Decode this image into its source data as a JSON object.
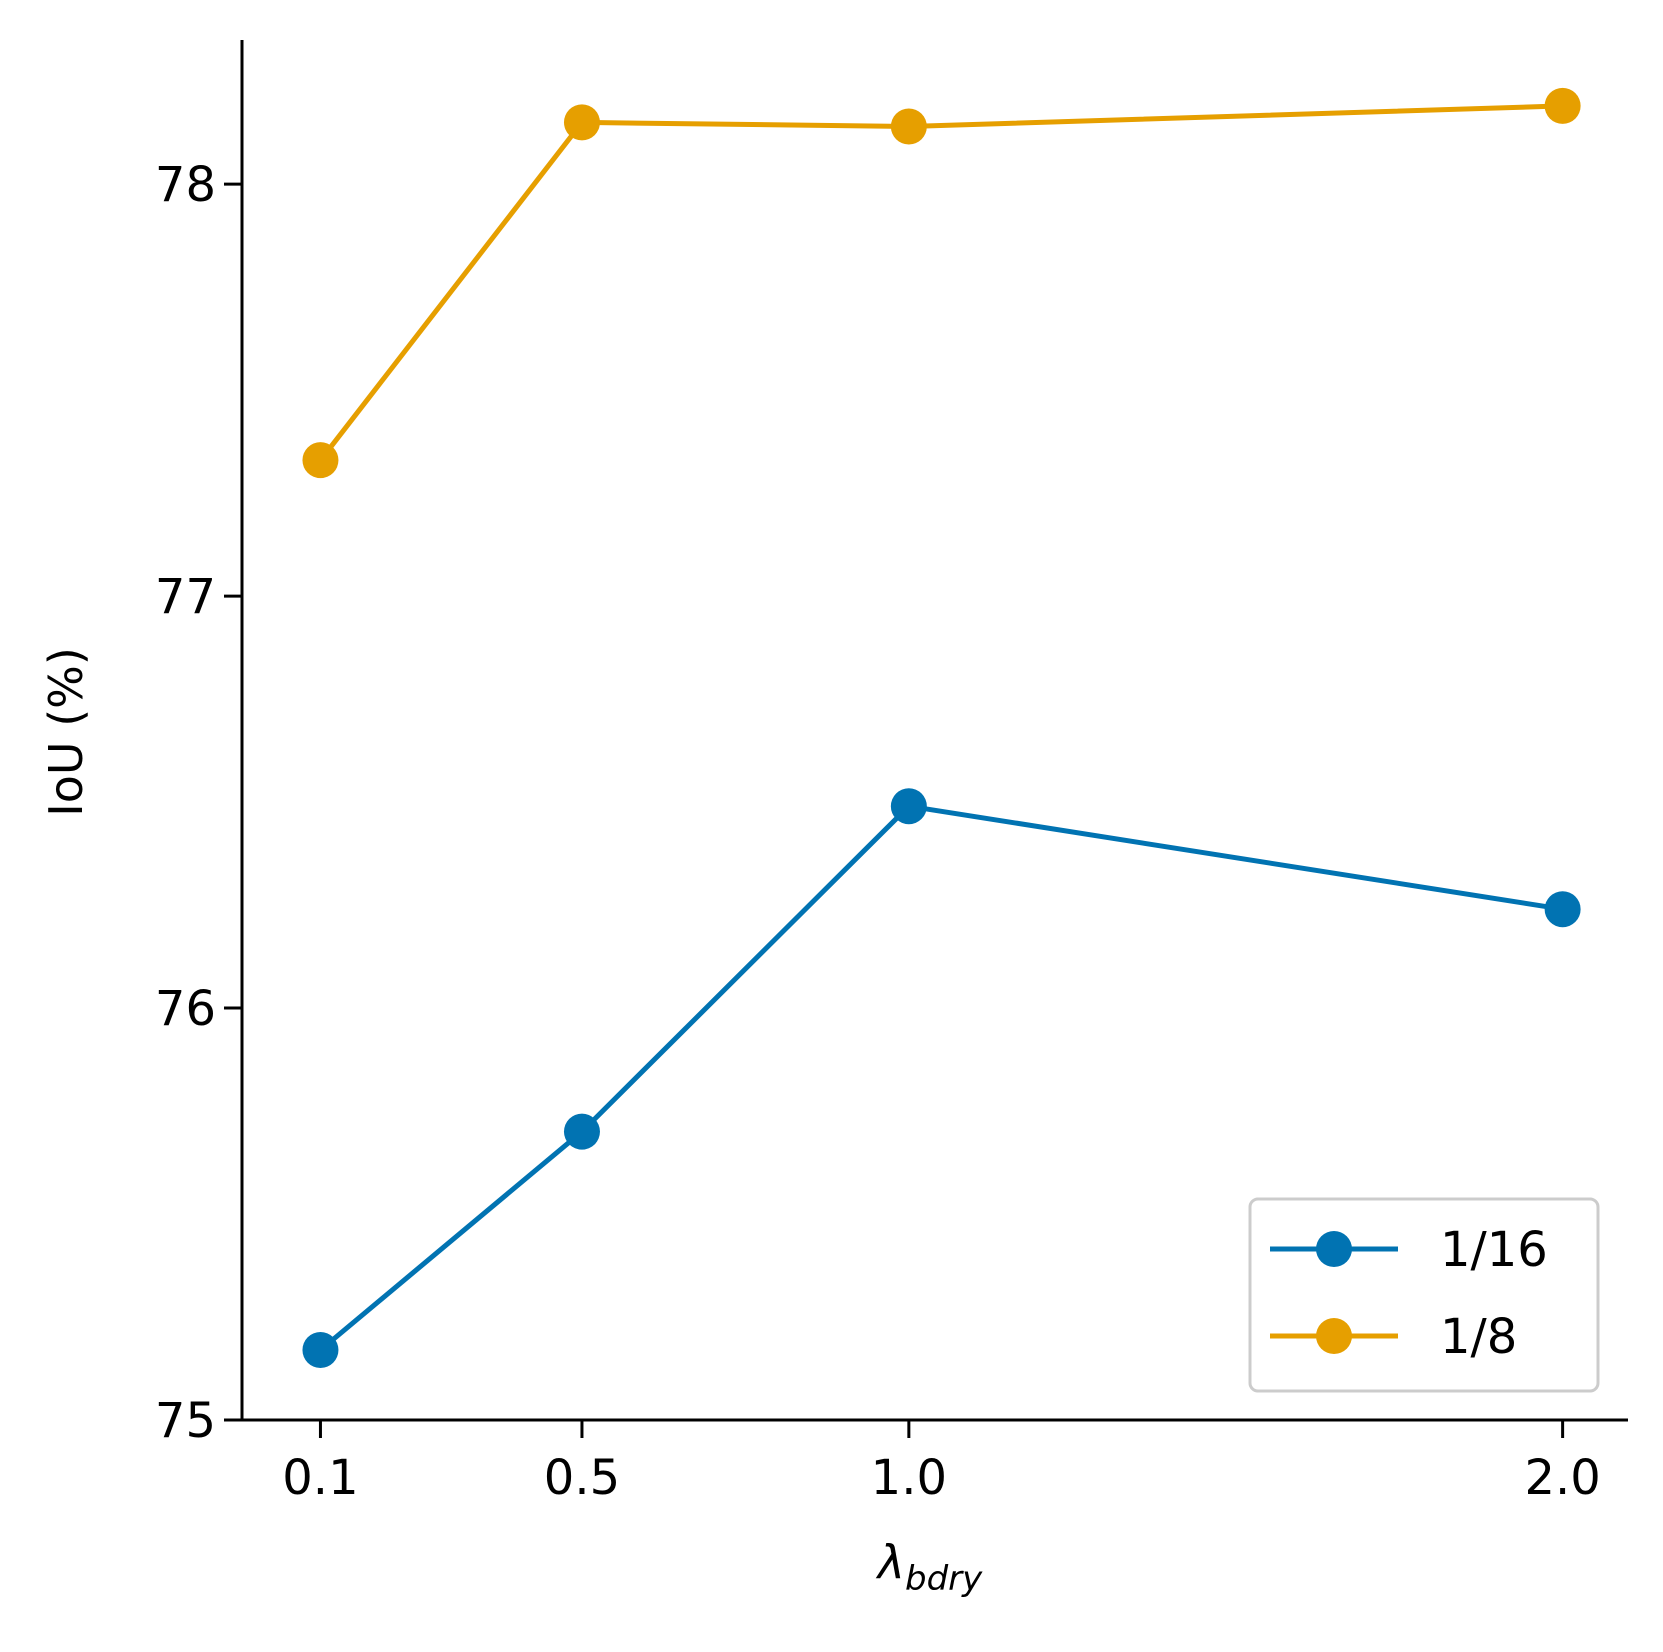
{
  "chart_data": {
    "type": "line",
    "title": "",
    "xlabel": "λ",
    "xlabel_subscript": "bdry",
    "ylabel": "IoU (%)",
    "categories": [
      "0.1",
      "0.5",
      "1.0",
      "2.0"
    ],
    "x": [
      0.1,
      0.5,
      1.0,
      2.0
    ],
    "xlim": [
      -0.02,
      2.1
    ],
    "ylim": [
      75.0,
      78.35
    ],
    "yticks": [
      75,
      76,
      77,
      78
    ],
    "ytick_labels": [
      "75",
      "76",
      "77",
      "78"
    ],
    "grid": false,
    "legend_position": "bottom-right",
    "series": [
      {
        "name": "1/16",
        "color": "#0173b2",
        "values": [
          75.17,
          75.7,
          76.49,
          76.24
        ]
      },
      {
        "name": "1/8",
        "color": "#e69f00",
        "values": [
          77.33,
          78.15,
          78.14,
          78.19
        ]
      }
    ]
  }
}
